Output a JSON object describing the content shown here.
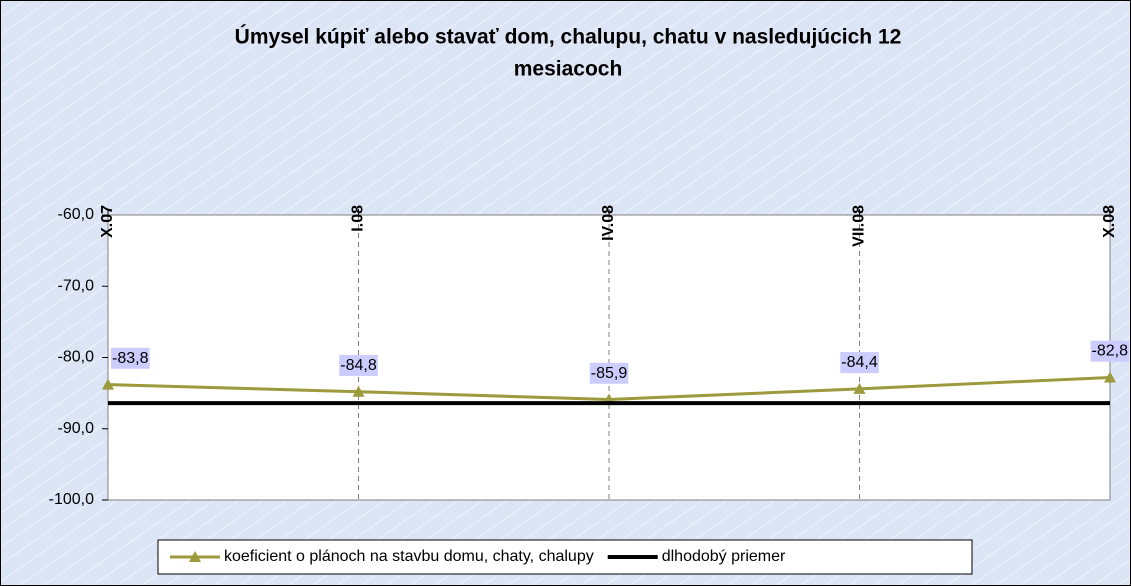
{
  "chart_data": {
    "type": "line",
    "title": [
      "Úmysel kúpiť alebo stavať dom, chalupu, chatu v nasledujúcich 12",
      "mesiacoch"
    ],
    "categories": [
      "X.07",
      "I.08",
      "IV.08",
      "VII.08",
      "X.08"
    ],
    "series": [
      {
        "name": "koeficient o plánoch na stavbu domu, chaty, chalupy",
        "color": "#9c9a3c",
        "values": [
          -83.8,
          -84.8,
          -85.9,
          -84.4,
          -82.8
        ],
        "value_labels": [
          "-83,8",
          "-84,8",
          "-85,9",
          "-84,4",
          "-82,8"
        ]
      },
      {
        "name": "dlhodobý priemer",
        "color": "#000000",
        "values": [
          -86.4,
          -86.4,
          -86.4,
          -86.4,
          -86.4
        ]
      }
    ],
    "ylim": [
      -100,
      -60
    ],
    "yticks": [
      {
        "value": -100,
        "label": "-100,0"
      },
      {
        "value": -90,
        "label": "-90,0"
      },
      {
        "value": -80,
        "label": "-80,0"
      },
      {
        "value": -70,
        "label": "-70,0"
      },
      {
        "value": -60,
        "label": "-60,0"
      }
    ],
    "legend": "bottom"
  }
}
